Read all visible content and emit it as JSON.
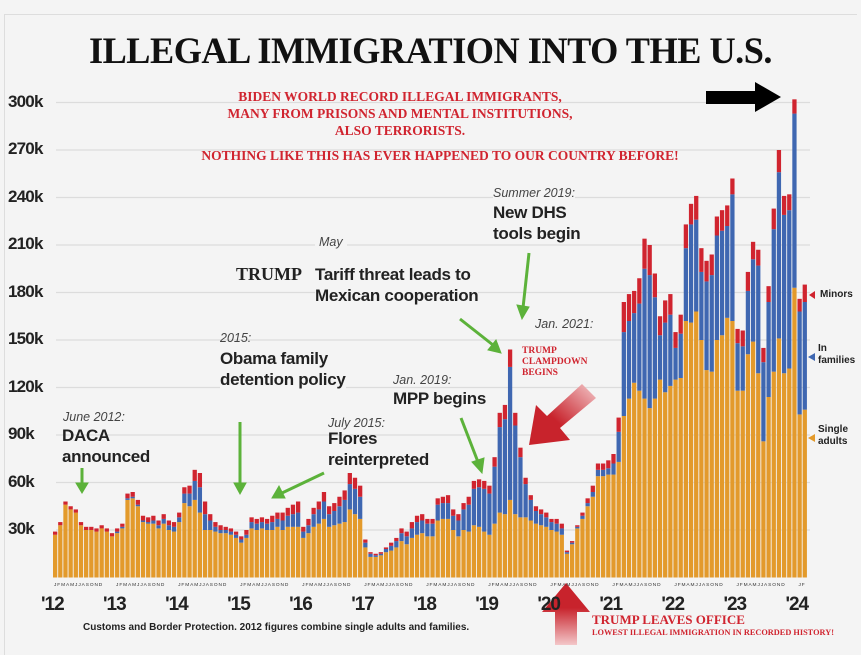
{
  "colors": {
    "single_adults": "#e39a2b",
    "in_families": "#3f67b1",
    "minors": "#d0242f",
    "annotation_arrow": "#5cb23a",
    "trump_arrow": "#c8232c"
  },
  "title": "ILLEGAL IMMIGRATION INTO THE U.S.",
  "subtitle_lines": [
    "BIDEN WORLD RECORD ILLEGAL IMMIGRANTS,",
    "MANY FROM PRISONS AND MENTAL INSTITUTIONS,",
    "ALSO TERRORISTS."
  ],
  "subtitle2": "NOTHING LIKE THIS HAS EVER HAPPENED TO OUR COUNTRY BEFORE!",
  "annotations": {
    "daca": {
      "date": "June 2012:",
      "text": [
        "DACA",
        "announced"
      ]
    },
    "obama": {
      "date": "2015:",
      "text": [
        "Obama family",
        "detention policy"
      ]
    },
    "flores": {
      "date": "July 2015:",
      "text": [
        "Flores",
        "reinterpreted"
      ]
    },
    "tariff": {
      "date": "May",
      "prefix": "TRUMP",
      "text": [
        "Tariff threat leads to",
        "Mexican cooperation"
      ]
    },
    "dhs": {
      "date": "Summer 2019:",
      "text": [
        "New DHS",
        "tools begin"
      ]
    },
    "mpp": {
      "date": "Jan. 2019:",
      "text": [
        "MPP begins"
      ]
    },
    "jan2021": {
      "date": "Jan. 2021:"
    },
    "clampdown": [
      "TRUMP",
      "CLAMPDOWN",
      "BEGINS"
    ],
    "leaves_office": "TRUMP LEAVES OFFICE",
    "lowest": "LOWEST ILLEGAL IMMIGRATION IN RECORDED HISTORY!"
  },
  "footer": "Customs and Border Protection. 2012 figures combine single adults and families.",
  "legend": {
    "minors": "Minors",
    "families": [
      "In",
      "families"
    ],
    "singles": [
      "Single",
      "adults"
    ]
  },
  "chart_data": {
    "type": "bar",
    "stacked": true,
    "title": "ILLEGAL IMMIGRATION INTO THE U.S.",
    "x_start": "2012-01",
    "x_end": "2024-02",
    "x_interval": "month",
    "month_tick_labels": [
      "J",
      "F",
      "M",
      "A",
      "M",
      "J",
      "J",
      "A",
      "S",
      "O",
      "N",
      "D"
    ],
    "year_tick_labels": [
      "'12",
      "'13",
      "'14",
      "'15",
      "'16",
      "'17",
      "'18",
      "'19",
      "'20",
      "'21",
      "'22",
      "'23",
      "'24"
    ],
    "y_tick_labels": [
      "30k",
      "60k",
      "90k",
      "120k",
      "150k",
      "180k",
      "210k",
      "240k",
      "270k",
      "300k"
    ],
    "y_ticks": [
      30000,
      60000,
      90000,
      120000,
      150000,
      180000,
      210000,
      240000,
      270000,
      300000
    ],
    "ylim": [
      0,
      310000
    ],
    "units": "thousands per month",
    "grid": true,
    "legend_position": "right",
    "series": [
      {
        "name": "Single adults",
        "values": [
          27,
          33,
          46,
          43,
          41,
          33,
          30,
          30,
          29,
          31,
          29,
          26,
          28,
          31,
          49,
          50,
          45,
          35,
          34,
          34,
          31,
          34,
          30,
          29,
          35,
          47,
          45,
          49,
          41,
          30,
          30,
          29,
          28,
          28,
          27,
          25,
          22,
          25,
          31,
          30,
          31,
          30,
          30,
          32,
          30,
          32,
          32,
          32,
          25,
          28,
          32,
          34,
          37,
          32,
          33,
          34,
          35,
          43,
          40,
          37,
          19,
          13,
          13,
          14,
          16,
          17,
          19,
          23,
          21,
          25,
          27,
          28,
          26,
          26,
          36,
          37,
          37,
          30,
          26,
          30,
          29,
          33,
          32,
          29,
          27,
          34,
          41,
          40,
          49,
          40,
          38,
          38,
          36,
          34,
          33,
          32,
          30,
          29,
          27,
          15,
          21,
          31,
          37,
          45,
          51,
          64,
          64,
          65,
          65,
          73,
          102,
          113,
          123,
          118,
          113,
          107,
          113,
          125,
          117,
          121,
          125,
          126,
          162,
          161,
          168,
          150,
          131,
          130,
          150,
          153,
          164,
          162,
          118,
          118,
          141,
          149,
          129,
          86,
          114,
          130,
          151,
          129,
          132,
          183,
          103,
          106
        ]
      },
      {
        "name": "In families",
        "values": [
          0,
          0,
          0,
          0,
          0,
          0,
          0,
          0,
          0,
          0,
          0,
          0,
          1,
          1,
          1,
          1,
          1,
          1,
          1,
          2,
          2,
          3,
          3,
          3,
          3,
          6,
          8,
          12,
          16,
          10,
          6,
          3,
          2,
          2,
          2,
          2,
          2,
          2,
          4,
          4,
          4,
          4,
          5,
          5,
          6,
          7,
          8,
          9,
          4,
          5,
          8,
          9,
          11,
          8,
          9,
          11,
          14,
          16,
          16,
          14,
          3,
          2,
          1,
          1,
          2,
          3,
          4,
          5,
          5,
          6,
          8,
          8,
          8,
          8,
          10,
          10,
          10,
          9,
          10,
          13,
          17,
          23,
          25,
          27,
          26,
          36,
          54,
          60,
          84,
          56,
          38,
          21,
          13,
          8,
          7,
          6,
          5,
          5,
          4,
          1,
          1,
          1,
          2,
          2,
          3,
          4,
          4,
          4,
          7,
          19,
          53,
          49,
          44,
          55,
          82,
          84,
          64,
          28,
          44,
          45,
          20,
          28,
          46,
          62,
          58,
          43,
          56,
          61,
          66,
          66,
          58,
          80,
          30,
          28,
          40,
          52,
          68,
          50,
          60,
          90,
          105,
          100,
          100,
          110,
          65,
          68
        ]
      },
      {
        "name": "Minors",
        "values": [
          2,
          2,
          2,
          2,
          2,
          2,
          2,
          2,
          2,
          2,
          2,
          2,
          2,
          2,
          3,
          3,
          3,
          3,
          3,
          3,
          3,
          3,
          3,
          3,
          3,
          4,
          5,
          7,
          9,
          8,
          4,
          3,
          3,
          2,
          2,
          2,
          2,
          3,
          3,
          3,
          3,
          3,
          4,
          4,
          5,
          5,
          6,
          7,
          3,
          4,
          4,
          5,
          6,
          5,
          5,
          6,
          6,
          7,
          7,
          7,
          2,
          1,
          1,
          1,
          1,
          2,
          2,
          3,
          3,
          4,
          4,
          4,
          3,
          3,
          4,
          4,
          5,
          4,
          4,
          4,
          5,
          5,
          5,
          5,
          5,
          6,
          9,
          9,
          11,
          8,
          6,
          4,
          3,
          3,
          3,
          3,
          2,
          3,
          3,
          1,
          1,
          1,
          2,
          3,
          4,
          4,
          4,
          5,
          6,
          9,
          19,
          17,
          14,
          16,
          19,
          19,
          15,
          12,
          14,
          13,
          10,
          12,
          15,
          13,
          15,
          15,
          13,
          13,
          12,
          13,
          13,
          10,
          9,
          10,
          12,
          11,
          10,
          9,
          10,
          13,
          14,
          12,
          10,
          9,
          8,
          11
        ]
      }
    ]
  }
}
